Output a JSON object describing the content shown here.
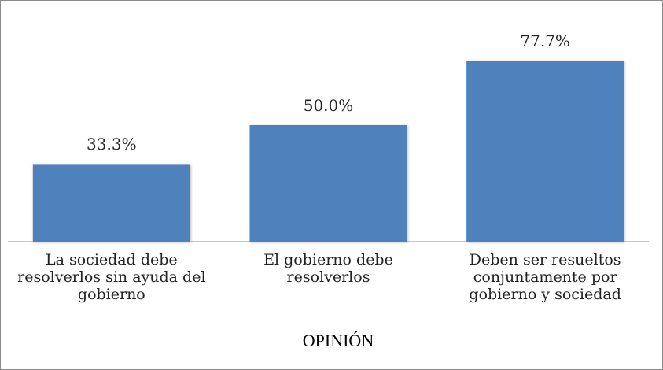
{
  "chart_data": {
    "type": "bar",
    "categories": [
      "La sociedad debe resolverlos sin ayuda del gobierno",
      "El gobierno debe resolverlos",
      "Deben ser resueltos conjuntamente por gobierno y sociedad"
    ],
    "values": [
      33.3,
      50.0,
      77.7
    ],
    "value_labels": [
      "33.3%",
      "50.0%",
      "77.7%"
    ],
    "color": "#4f81bd",
    "x_label": "OPINIÓN"
  }
}
